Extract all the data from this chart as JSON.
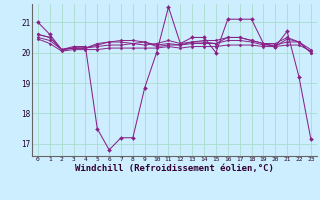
{
  "background_color": "#cceeff",
  "grid_color": "#aaddcc",
  "line_color": "#882288",
  "xlabel": "Windchill (Refroidissement éolien,°C)",
  "xlabel_fontsize": 6.5,
  "yticks": [
    17,
    18,
    19,
    20,
    21
  ],
  "xticks": [
    0,
    1,
    2,
    3,
    4,
    5,
    6,
    7,
    8,
    9,
    10,
    11,
    12,
    13,
    14,
    15,
    16,
    17,
    18,
    19,
    20,
    21,
    22,
    23
  ],
  "xlim": [
    -0.5,
    23.5
  ],
  "ylim": [
    16.6,
    21.6
  ],
  "series1_x": [
    0,
    1,
    2,
    3,
    4,
    5,
    6,
    7,
    8,
    9,
    10,
    11,
    12,
    13,
    14,
    15,
    16,
    17,
    18,
    19,
    20,
    21,
    22,
    23
  ],
  "series1_y": [
    21.0,
    20.6,
    20.1,
    20.2,
    20.2,
    17.5,
    16.8,
    17.2,
    17.2,
    18.85,
    20.0,
    21.5,
    20.3,
    20.5,
    20.5,
    20.0,
    21.1,
    21.1,
    21.1,
    20.3,
    20.2,
    20.7,
    19.2,
    17.15
  ],
  "series2_x": [
    0,
    1,
    2,
    3,
    4,
    5,
    6,
    7,
    8,
    9,
    10,
    11,
    12,
    13,
    14,
    15,
    16,
    17,
    18,
    19,
    20,
    21,
    22,
    23
  ],
  "series2_y": [
    20.6,
    20.5,
    20.1,
    20.15,
    20.15,
    20.3,
    20.35,
    20.35,
    20.3,
    20.25,
    20.3,
    20.4,
    20.3,
    20.35,
    20.4,
    20.4,
    20.5,
    20.5,
    20.4,
    20.3,
    20.3,
    20.5,
    20.35,
    20.1
  ],
  "series3_x": [
    0,
    1,
    2,
    3,
    4,
    5,
    6,
    7,
    8,
    9,
    10,
    11,
    12,
    13,
    14,
    15,
    16,
    17,
    18,
    19,
    20,
    21,
    22,
    23
  ],
  "series3_y": [
    20.45,
    20.3,
    20.05,
    20.1,
    20.1,
    20.1,
    20.15,
    20.15,
    20.15,
    20.15,
    20.15,
    20.2,
    20.15,
    20.2,
    20.2,
    20.2,
    20.25,
    20.25,
    20.25,
    20.2,
    20.2,
    20.25,
    20.25,
    20.05
  ],
  "series4_x": [
    0,
    1,
    2,
    3,
    4,
    5,
    6,
    7,
    8,
    9,
    10,
    11,
    12,
    13,
    14,
    15,
    16,
    17,
    18,
    19,
    20,
    21,
    22,
    23
  ],
  "series4_y": [
    20.5,
    20.4,
    20.1,
    20.15,
    20.15,
    20.2,
    20.25,
    20.25,
    20.3,
    20.35,
    20.25,
    20.3,
    20.25,
    20.3,
    20.3,
    20.3,
    20.4,
    20.4,
    20.35,
    20.25,
    20.25,
    20.35,
    20.35,
    20.0
  ],
  "series5_x": [
    0,
    1,
    2,
    3,
    4,
    5,
    6,
    7,
    8,
    9,
    10,
    11,
    12,
    13,
    14,
    15,
    16,
    17,
    18,
    19,
    20,
    21,
    22,
    23
  ],
  "series5_y": [
    20.6,
    20.5,
    20.1,
    20.15,
    20.15,
    20.25,
    20.35,
    20.4,
    20.4,
    20.35,
    20.2,
    20.25,
    20.25,
    20.35,
    20.35,
    20.3,
    20.5,
    20.5,
    20.4,
    20.3,
    20.2,
    20.45,
    20.35,
    20.0
  ]
}
